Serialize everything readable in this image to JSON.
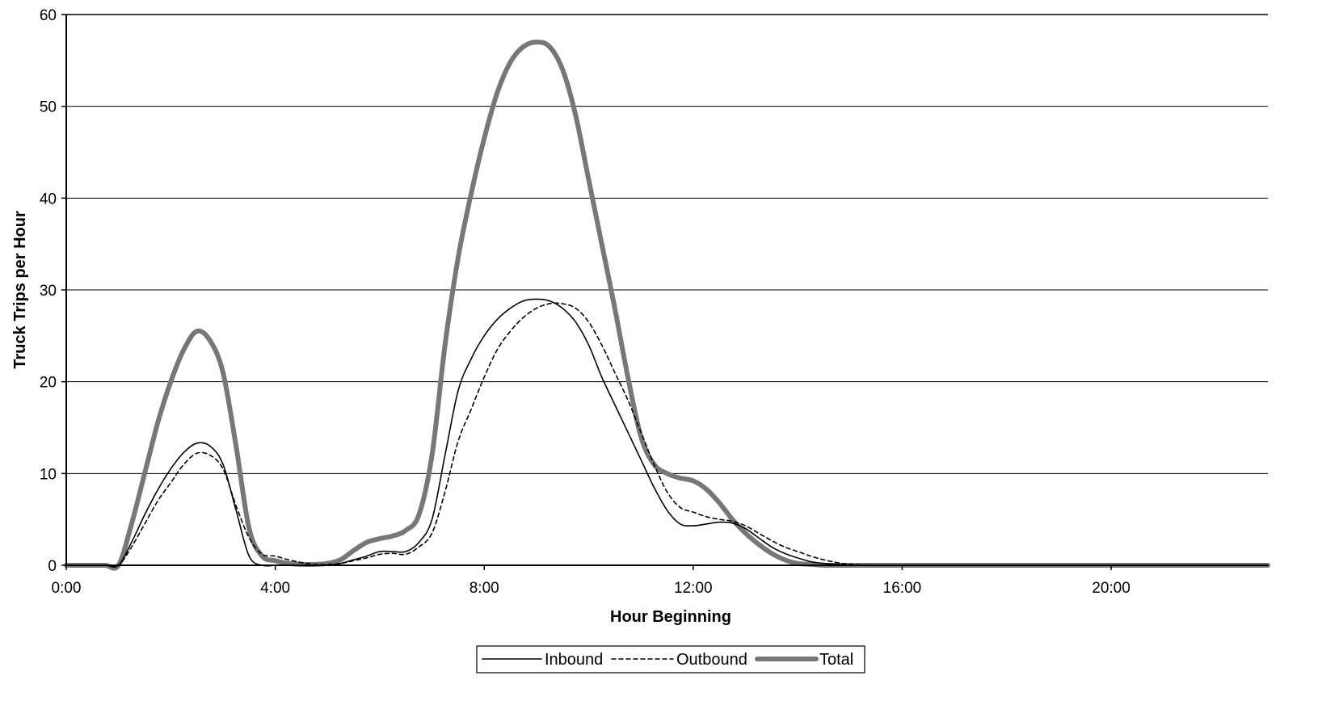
{
  "chart_data": {
    "type": "line",
    "xlabel": "Hour Beginning",
    "ylabel": "Truck Trips per Hour",
    "xlim": [
      0,
      23
    ],
    "ylim": [
      0,
      60
    ],
    "x_ticks": [
      0,
      4,
      8,
      12,
      16,
      20
    ],
    "x_tick_labels": [
      "0:00",
      "4:00",
      "8:00",
      "12:00",
      "16:00",
      "20:00"
    ],
    "y_ticks": [
      0,
      10,
      20,
      30,
      40,
      50,
      60
    ],
    "y_tick_labels": [
      "0",
      "10",
      "20",
      "30",
      "40",
      "50",
      "60"
    ],
    "grid": "horizontal",
    "legend_position": "bottom",
    "x": [
      0,
      0.25,
      0.5,
      0.75,
      1,
      1.25,
      1.5,
      1.75,
      2,
      2.25,
      2.5,
      2.75,
      3,
      3.25,
      3.5,
      3.75,
      4,
      4.25,
      4.5,
      4.75,
      5,
      5.25,
      5.5,
      5.75,
      6,
      6.25,
      6.5,
      6.75,
      7,
      7.25,
      7.5,
      7.75,
      8,
      8.25,
      8.5,
      8.75,
      9,
      9.25,
      9.5,
      9.75,
      10,
      10.25,
      10.5,
      10.75,
      11,
      11.25,
      11.5,
      11.75,
      12,
      12.25,
      12.5,
      12.75,
      13,
      13.25,
      13.5,
      13.75,
      14,
      14.25,
      14.5,
      14.75,
      15,
      15.5,
      16,
      17,
      18,
      19,
      20,
      21,
      22,
      23
    ],
    "series": [
      {
        "name": "Inbound",
        "style": "solid-thin",
        "color": "#000000",
        "values": [
          0,
          0,
          0,
          0,
          0,
          2.5,
          5.5,
          8.2,
          10.5,
          12.3,
          13.3,
          13.0,
          11.0,
          6.0,
          1.0,
          0,
          0,
          0,
          0,
          0,
          0,
          0.2,
          0.6,
          1.0,
          1.5,
          1.5,
          1.5,
          2.5,
          5.0,
          12.0,
          19.0,
          22.5,
          25.0,
          26.8,
          28.0,
          28.8,
          29.0,
          28.8,
          28.0,
          26.5,
          24.0,
          20.5,
          17.5,
          14.5,
          11.5,
          8.5,
          6.0,
          4.5,
          4.3,
          4.5,
          4.7,
          4.6,
          4.0,
          3.0,
          2.0,
          1.3,
          0.8,
          0.4,
          0.2,
          0.1,
          0,
          0,
          0,
          0,
          0,
          0,
          0,
          0,
          0,
          0
        ]
      },
      {
        "name": "Outbound",
        "style": "dashed",
        "color": "#000000",
        "values": [
          0,
          0,
          0,
          0,
          0,
          2.0,
          4.5,
          7.0,
          9.0,
          11.0,
          12.2,
          12.0,
          10.5,
          6.5,
          3.0,
          1.2,
          1.0,
          0.6,
          0.3,
          0.1,
          0.1,
          0.2,
          0.5,
          0.8,
          1.2,
          1.3,
          1.2,
          2.0,
          3.5,
          8.0,
          13.5,
          17.0,
          20.5,
          23.5,
          25.5,
          27.0,
          28.0,
          28.5,
          28.5,
          28.0,
          26.5,
          24.0,
          21.0,
          18.0,
          14.5,
          11.0,
          8.0,
          6.3,
          5.8,
          5.3,
          5.0,
          4.8,
          4.3,
          3.5,
          2.7,
          2.0,
          1.5,
          1.0,
          0.6,
          0.3,
          0.1,
          0,
          0,
          0,
          0,
          0,
          0,
          0,
          0,
          0
        ]
      },
      {
        "name": "Total",
        "style": "solid-thick",
        "color": "#777777",
        "values": [
          0,
          0,
          0,
          0,
          0,
          4.5,
          10.0,
          15.5,
          20.0,
          23.5,
          25.5,
          24.5,
          21.0,
          13.0,
          4.0,
          1.0,
          0.5,
          0.2,
          0.1,
          0.1,
          0.2,
          0.6,
          1.6,
          2.5,
          2.9,
          3.2,
          3.8,
          5.5,
          12.0,
          24.0,
          33.5,
          40.5,
          46.5,
          51.5,
          54.8,
          56.5,
          57.0,
          56.5,
          54.0,
          49.0,
          42.0,
          35.0,
          28.0,
          20.5,
          14.0,
          11.0,
          10.0,
          9.5,
          9.2,
          8.3,
          6.8,
          5.0,
          3.5,
          2.3,
          1.3,
          0.6,
          0.2,
          0.1,
          0,
          0,
          0,
          0,
          0,
          0,
          0,
          0,
          0,
          0,
          0,
          0
        ]
      }
    ]
  }
}
